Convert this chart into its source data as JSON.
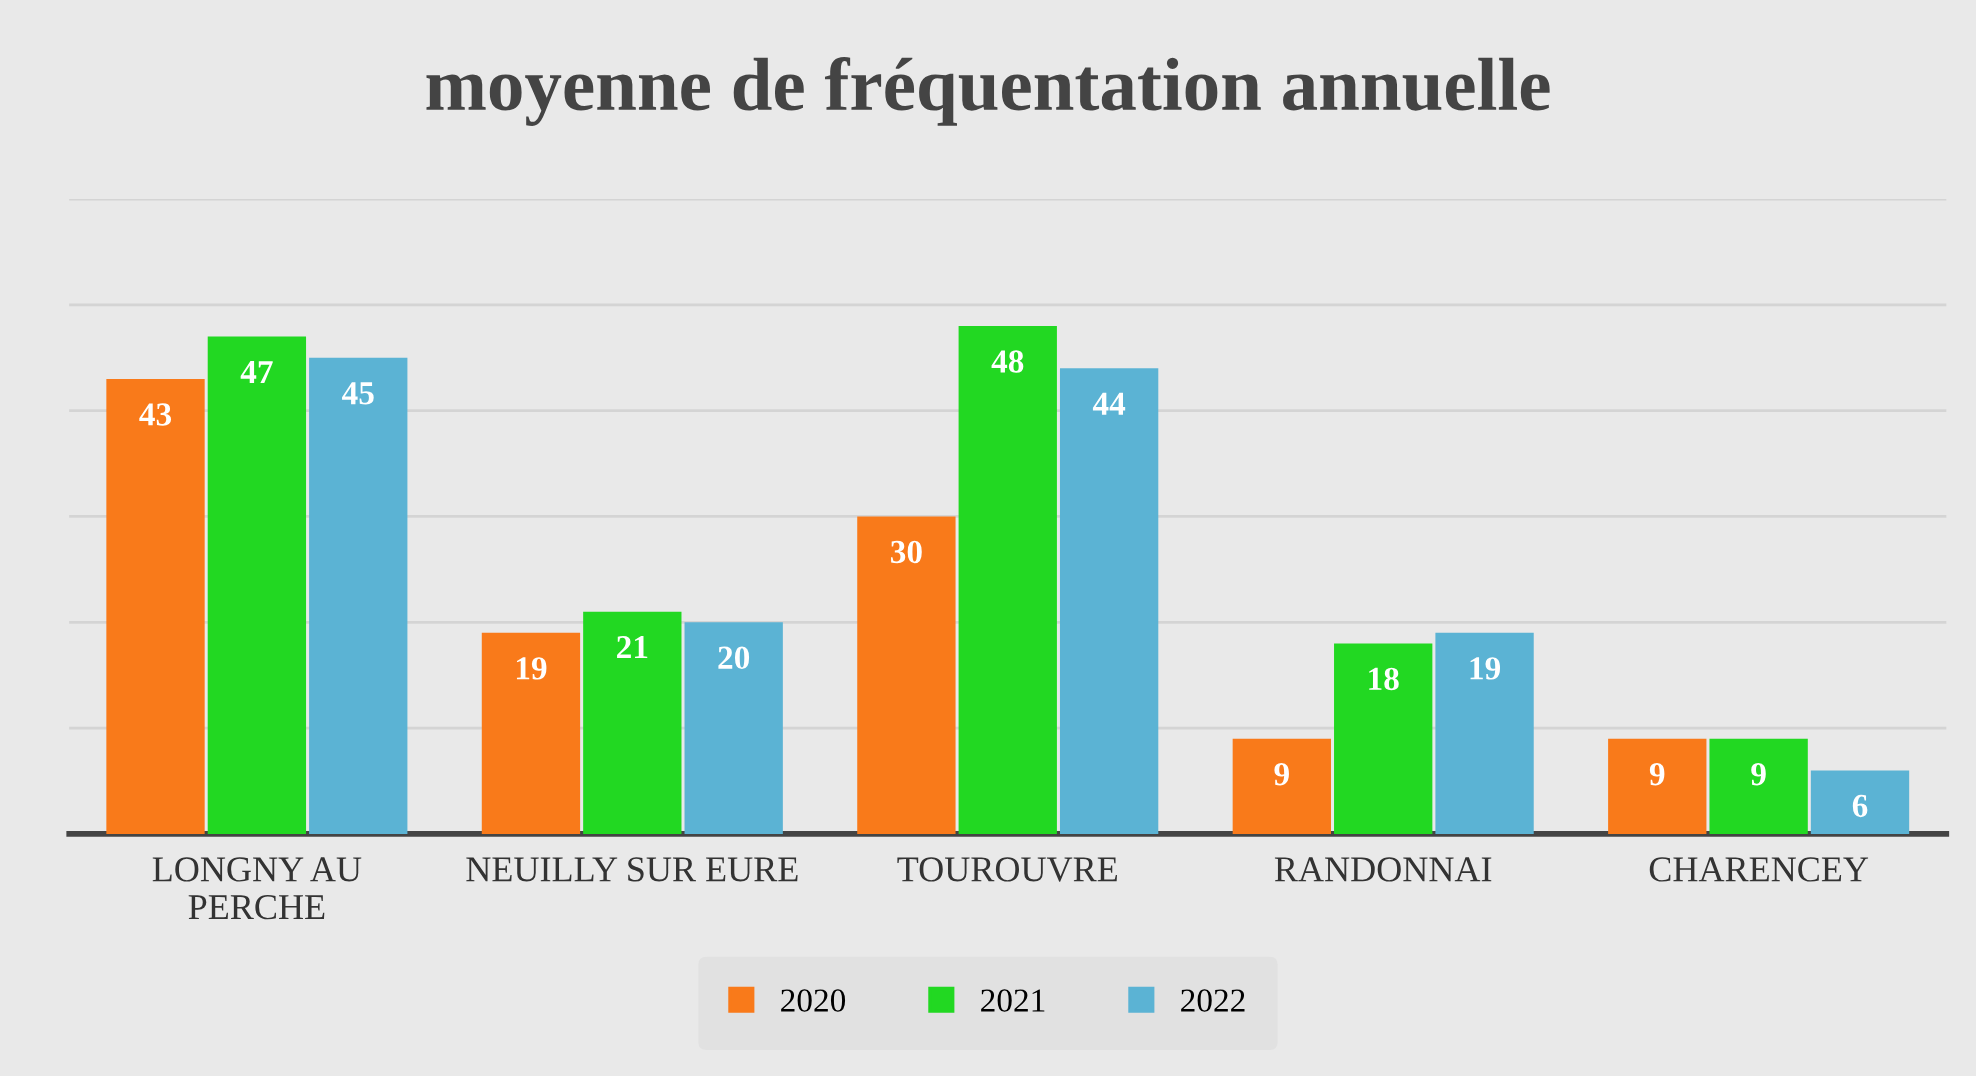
{
  "chart_data": {
    "type": "bar",
    "title": "moyenne de fréquentation annuelle",
    "categories": [
      "LONGNY AU\nPERCHE",
      "NEUILLY SUR EURE",
      "TOUROUVRE",
      "RANDONNAI",
      "CHARENCEY"
    ],
    "series": [
      {
        "name": "2020",
        "color": "#f97a1a",
        "values": [
          43,
          19,
          30,
          9,
          9
        ]
      },
      {
        "name": "2021",
        "color": "#22d822",
        "values": [
          47,
          21,
          48,
          18,
          9
        ]
      },
      {
        "name": "2022",
        "color": "#5bb3d4",
        "values": [
          45,
          20,
          44,
          19,
          6
        ]
      }
    ],
    "ylim": [
      0,
      60
    ],
    "yticks": [
      {
        "value": 0,
        "label": null
      },
      {
        "value": 10,
        "label": null
      },
      {
        "value": 20,
        "label": null
      },
      {
        "value": 30,
        "label": null
      },
      {
        "value": 40,
        "label": null
      },
      {
        "value": 50,
        "label": null
      },
      {
        "value": 60,
        "label": null
      }
    ],
    "tick_labels": "x",
    "grid": "y",
    "legend": "bottom",
    "data_labels": true
  }
}
